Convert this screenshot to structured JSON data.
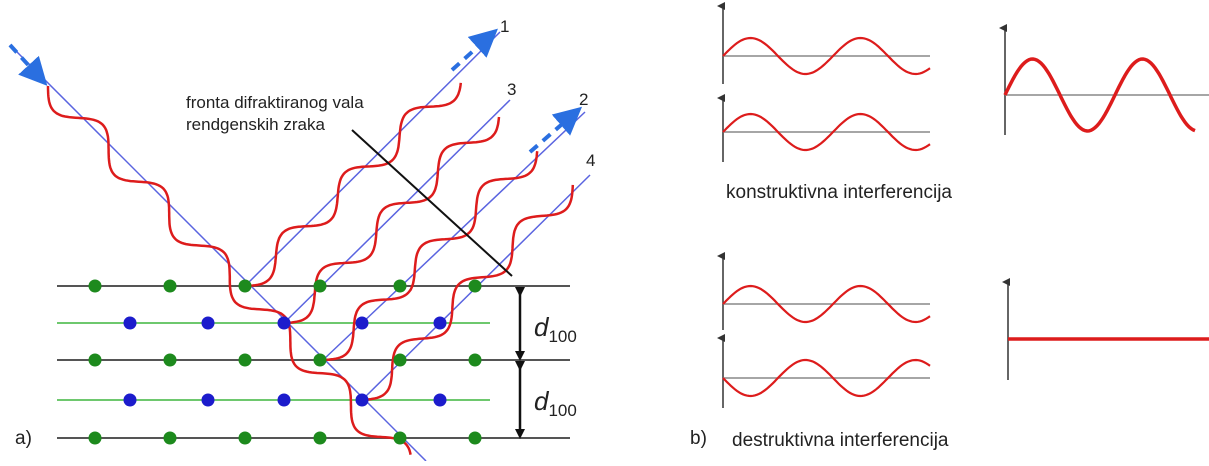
{
  "colors": {
    "wave": "#dd1c1c",
    "ray": "#5a64e0",
    "arrow": "#2a6fe0",
    "green_dot": "#1d8a1d",
    "blue_dot": "#1c1ccc",
    "green_line": "#6ec86e",
    "plane_line": "#555555",
    "axis": "#333333"
  },
  "icons": {
    "incident_arrow": "arrow-icon",
    "ray_arrows": "arrow-icon",
    "spacing_marker": "double-arrow-icon"
  },
  "diagram_a": {
    "panel_label": "a)",
    "wavefront_label_lines": [
      "fronta difraktiranog vala",
      "rendgenskih zraka"
    ],
    "ray_numbers": [
      "1",
      "3",
      "2",
      "4"
    ],
    "spacing_labels": [
      {
        "symbol": "d",
        "subscript": "100"
      },
      {
        "symbol": "d",
        "subscript": "100"
      }
    ]
  },
  "diagram_b": {
    "panel_label": "b)",
    "constructive_caption": "konstruktivna interferencija",
    "destructive_caption": "destruktivna interferencija"
  }
}
